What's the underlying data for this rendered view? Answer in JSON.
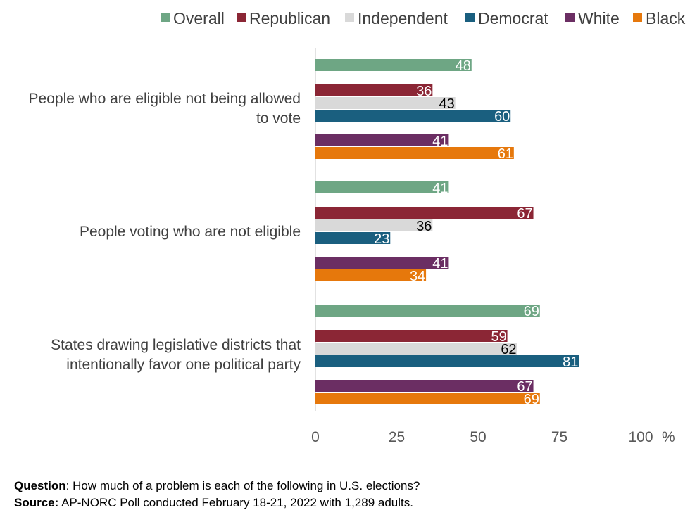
{
  "chart_data": {
    "type": "bar",
    "orientation": "horizontal",
    "categories": [
      [
        "People who are eligible not being allowed",
        "to vote"
      ],
      [
        "People voting who are not eligible"
      ],
      [
        "States drawing legislative districts that",
        "intentionally favor one political party"
      ]
    ],
    "series": [
      {
        "name": "Overall",
        "color": "#6ea684",
        "label_color": "#ffffff",
        "values": [
          48,
          41,
          69
        ]
      },
      {
        "name": "Republican",
        "color": "#8b2635",
        "label_color": "#ffffff",
        "values": [
          36,
          67,
          59
        ]
      },
      {
        "name": "Independent",
        "color": "#d9d9d9",
        "label_color": "#000000",
        "values": [
          43,
          36,
          62
        ]
      },
      {
        "name": "Democrat",
        "color": "#1a5f7f",
        "label_color": "#ffffff",
        "values": [
          60,
          23,
          81
        ]
      },
      {
        "name": "White",
        "color": "#6b2e63",
        "label_color": "#ffffff",
        "values": [
          41,
          41,
          67
        ]
      },
      {
        "name": "Black",
        "color": "#e6780c",
        "label_color": "#ffffff",
        "values": [
          61,
          34,
          69
        ]
      }
    ],
    "xlim": [
      0,
      100
    ],
    "xticks": [
      0,
      25,
      50,
      75,
      100
    ],
    "x_unit": "%",
    "legend_position": "top",
    "grid": false
  },
  "footer": {
    "question_label": "Question",
    "question_text": ": How much of a problem is each of the following in U.S. elections?",
    "source_label": "Source:",
    "source_text": " AP-NORC Poll conducted February 18-21, 2022 with 1,289 adults."
  }
}
